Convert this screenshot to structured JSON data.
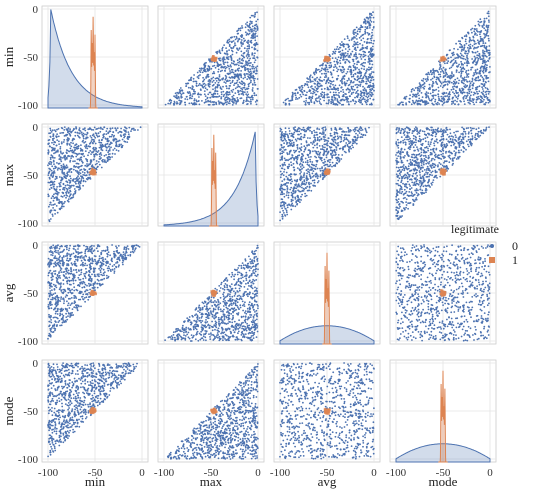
{
  "chart_data": {
    "type": "pairplot",
    "variables": [
      "min",
      "max",
      "avg",
      "mode"
    ],
    "axis_range": [
      -100,
      0
    ],
    "ticks": [
      -100,
      -50,
      0
    ],
    "grid": true,
    "legend": {
      "title": "legitimate",
      "placement": "right",
      "entries": [
        {
          "label": "0",
          "color": "#4c72b0",
          "marker": "dot"
        },
        {
          "label": "1",
          "color": "#dd8452",
          "marker": "square"
        }
      ]
    },
    "series": [
      {
        "name": "0",
        "color": "#4c72b0",
        "kind": "uniform scatter filling the region implied by min ≤ avg/mode ≤ max"
      },
      {
        "name": "1",
        "color": "#dd8452",
        "kind": "tight cluster near (-50, -50)"
      }
    ],
    "diagonal": {
      "min": {
        "kde_0_peak_at": -96,
        "kde_1_peak_at": -52
      },
      "max": {
        "kde_0_peak_at": -3,
        "kde_1_peak_at": -47
      },
      "avg": {
        "kde_0_peak_at": -50,
        "kde_1_peak_at": -50
      },
      "mode": {
        "kde_0_peak_at": -50,
        "kde_1_peak_at": -50
      }
    }
  }
}
